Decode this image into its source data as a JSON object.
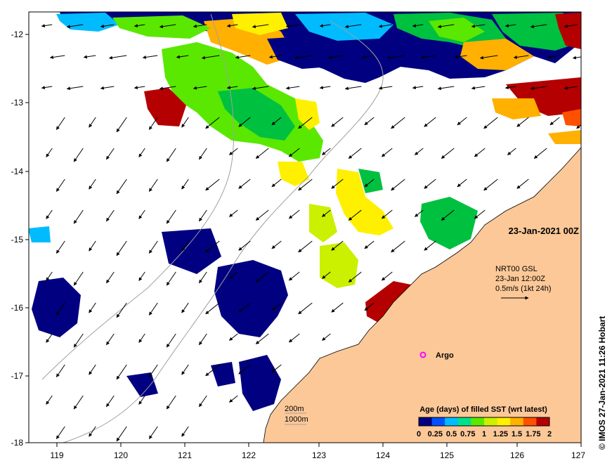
{
  "map": {
    "axes": {
      "y_ticks": [
        "-12",
        "-13",
        "-14",
        "-15",
        "-16",
        "-17",
        "-18"
      ],
      "x_ticks": [
        "119",
        "120",
        "121",
        "122",
        "123",
        "124",
        "125",
        "126",
        "127"
      ]
    },
    "date_label": "23-Jan-2021 00Z",
    "current_legend": {
      "line1": "NRT00 GSL",
      "line2": "23-Jan 12:00Z",
      "line3": "0.5m/s (1kt 24h)"
    },
    "argo_label": "Argo",
    "bathy_legend": {
      "label_200": "200m",
      "label_1000": "1000m"
    },
    "colorbar": {
      "title": "Age (days) of filled SST (wrt latest)",
      "tick_labels": [
        "0",
        "0.25",
        "0.5",
        "0.75",
        "1",
        "1.25",
        "1.5",
        "1.75",
        "2"
      ],
      "colors": [
        "#000080",
        "#0050ff",
        "#00bcff",
        "#00e08c",
        "#5ae800",
        "#cbf000",
        "#fff000",
        "#ffb000",
        "#ff5000",
        "#b40000"
      ]
    },
    "credit": "© IMOS 27-Jan-2021 11:26 Hobart",
    "colors": {
      "land": "#fcc898",
      "sea": "#ffffff",
      "argo": "#ff00ff"
    }
  }
}
